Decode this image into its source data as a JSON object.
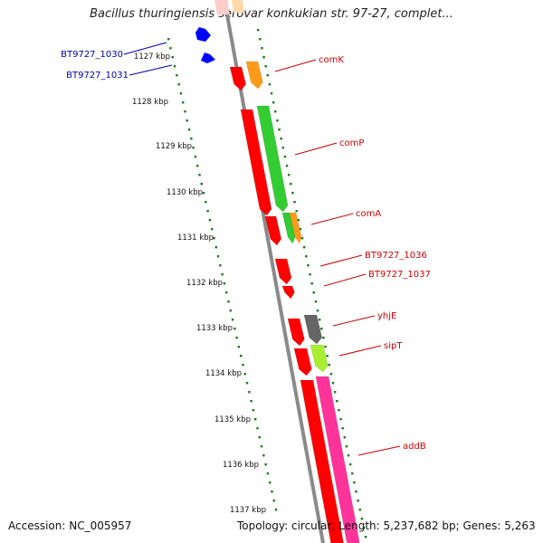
{
  "title": "Bacillus thuringiensis serovar konkukian str. 97-27, complet...",
  "accession_text": "Accession: NC_005957",
  "summary_text": "Topology: circular; Length: 5,237,682 bp; Genes: 5,263",
  "colors": {
    "tick": "#1a7a1a",
    "axis": "#808080",
    "label_red": "#cc0000",
    "label_blue": "#0000aa"
  },
  "scale": {
    "unit": "kbp",
    "ticks": [
      "1127 kbp",
      "1128 kbp",
      "1129 kbp",
      "1130 kbp",
      "1131 kbp",
      "1132 kbp",
      "1133 kbp",
      "1134 kbp",
      "1135 kbp",
      "1136 kbp",
      "1137 kbp"
    ]
  },
  "genes": [
    {
      "name": "BT9727_1030",
      "label_color": "blue",
      "color": "#0000ff",
      "strand": "minus"
    },
    {
      "name": "BT9727_1031",
      "label_color": "blue",
      "color": "#0000ff",
      "strand": "minus"
    },
    {
      "name": "comK",
      "label_color": "red",
      "color": "#ff9a1a",
      "strand": "plus"
    },
    {
      "name": "comP",
      "label_color": "red",
      "color": "#33cc33",
      "strand": "plus"
    },
    {
      "name": "comA",
      "label_color": "red",
      "color": "#ff9a1a",
      "strand": "plus"
    },
    {
      "name": "BT9727_1036",
      "label_color": "red",
      "color": "#ff0000",
      "strand": "minus"
    },
    {
      "name": "BT9727_1037",
      "label_color": "red",
      "color": "#ff0000",
      "strand": "minus"
    },
    {
      "name": "yhjE",
      "label_color": "red",
      "color": "#666666",
      "strand": "plus"
    },
    {
      "name": "sipT",
      "label_color": "red",
      "color": "#aaee33",
      "strand": "plus"
    },
    {
      "name": "addB",
      "label_color": "red",
      "color": "#ff3399",
      "strand": "plus"
    }
  ]
}
